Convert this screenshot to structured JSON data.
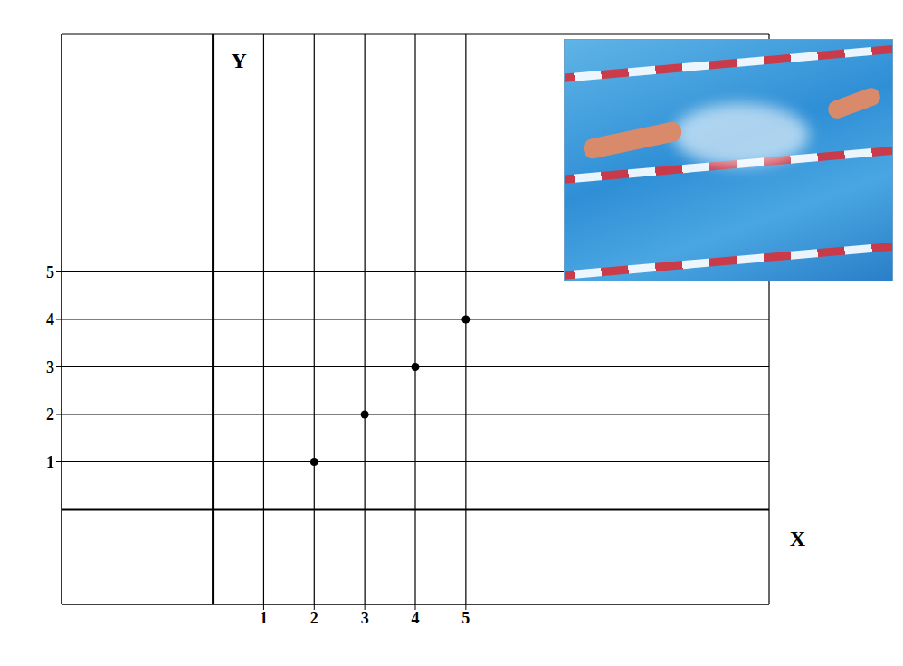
{
  "chart_data": {
    "type": "scatter",
    "x": [
      2,
      3,
      4,
      5
    ],
    "values": [
      1,
      2,
      3,
      4
    ],
    "xlabel": "X",
    "ylabel": "Y",
    "xlim": [
      -3,
      11
    ],
    "ylim": [
      -2,
      10
    ],
    "xticks": [
      1,
      2,
      3,
      4,
      5
    ],
    "yticks": [
      1,
      2,
      3,
      4,
      5
    ],
    "grid": true,
    "color": "#000000",
    "marker": "circle"
  }
}
